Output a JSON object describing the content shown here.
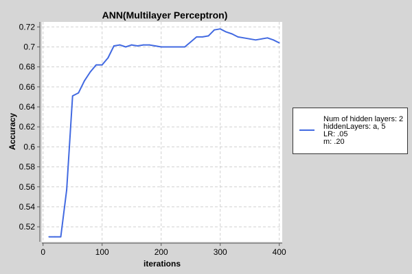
{
  "chart_data": {
    "type": "line",
    "title": "ANN(Multilayer Perceptron)",
    "xlabel": "iterations",
    "ylabel": "Accuracy",
    "xlim": [
      -2,
      405
    ],
    "ylim": [
      0.505,
      0.725
    ],
    "x_ticks": [
      0,
      100,
      200,
      300,
      400
    ],
    "y_ticks": [
      0.52,
      0.54,
      0.56,
      0.58,
      0.6,
      0.62,
      0.64,
      0.66,
      0.68,
      0.7,
      0.72
    ],
    "grid": true,
    "legend_placement": "right",
    "series": [
      {
        "name": "Num of hidden layers: 2",
        "legend_lines": [
          "Num of hidden layers: 2",
          "hiddenLayers: a, 5",
          "LR: .05",
          "m: .20"
        ],
        "color": "#4169e1",
        "x": [
          10,
          20,
          30,
          40,
          50,
          60,
          70,
          80,
          90,
          100,
          110,
          120,
          130,
          140,
          150,
          160,
          170,
          180,
          190,
          200,
          210,
          220,
          230,
          240,
          250,
          260,
          270,
          280,
          290,
          300,
          310,
          320,
          330,
          340,
          350,
          360,
          370,
          380,
          390,
          400
        ],
        "values": [
          0.51,
          0.51,
          0.51,
          0.557,
          0.651,
          0.654,
          0.666,
          0.675,
          0.682,
          0.682,
          0.689,
          0.701,
          0.702,
          0.7,
          0.702,
          0.701,
          0.702,
          0.702,
          0.701,
          0.7,
          0.7,
          0.7,
          0.7,
          0.7,
          0.705,
          0.71,
          0.71,
          0.711,
          0.717,
          0.718,
          0.715,
          0.713,
          0.71,
          0.709,
          0.708,
          0.707,
          0.708,
          0.709,
          0.707,
          0.704
        ]
      }
    ]
  }
}
